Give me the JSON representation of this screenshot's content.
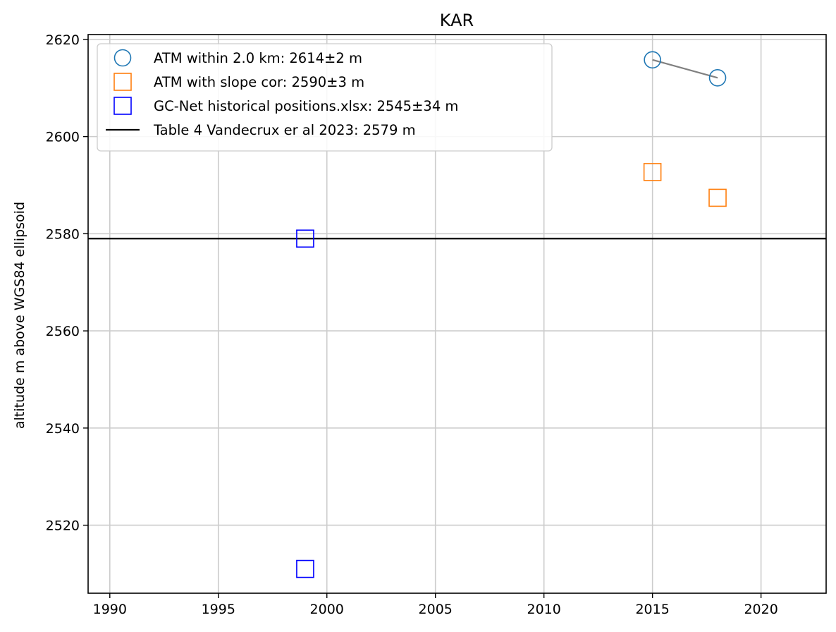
{
  "chart_data": {
    "type": "scatter",
    "title": "KAR",
    "xlabel": "",
    "ylabel": "altitude m above WGS84 ellipsoid",
    "xlim": [
      1989,
      2023
    ],
    "ylim": [
      2506,
      2621
    ],
    "x_ticks": [
      1990,
      1995,
      2000,
      2005,
      2010,
      2015,
      2020
    ],
    "y_ticks": [
      2520,
      2540,
      2560,
      2580,
      2600,
      2620
    ],
    "grid": true,
    "legend_placement": "top-left",
    "series": [
      {
        "name": "ATM within 2.0 km: 2614±2 m",
        "marker": "circle",
        "color": "#1f77b4",
        "x": [
          2015.0,
          2018.0
        ],
        "y": [
          2615.8,
          2612.1
        ]
      },
      {
        "name": "ATM with slope cor: 2590±3 m",
        "marker": "square",
        "color": "#ff7f0e",
        "x": [
          2015.0,
          2018.0
        ],
        "y": [
          2592.7,
          2587.4
        ]
      },
      {
        "name": "GC-Net historical positions.xlsx: 2545±34 m",
        "marker": "square",
        "color": "#0000ff",
        "x": [
          1999.0,
          1999.0
        ],
        "y": [
          2579.0,
          2511.0
        ]
      },
      {
        "name": "Table 4 Vandecrux er al 2023: 2579 m",
        "marker": "hline",
        "color": "#000000",
        "y": 2579
      }
    ],
    "trend_line": {
      "color": "#808080",
      "x": [
        2015.0,
        2018.0
      ],
      "y": [
        2615.8,
        2612.1
      ]
    }
  }
}
